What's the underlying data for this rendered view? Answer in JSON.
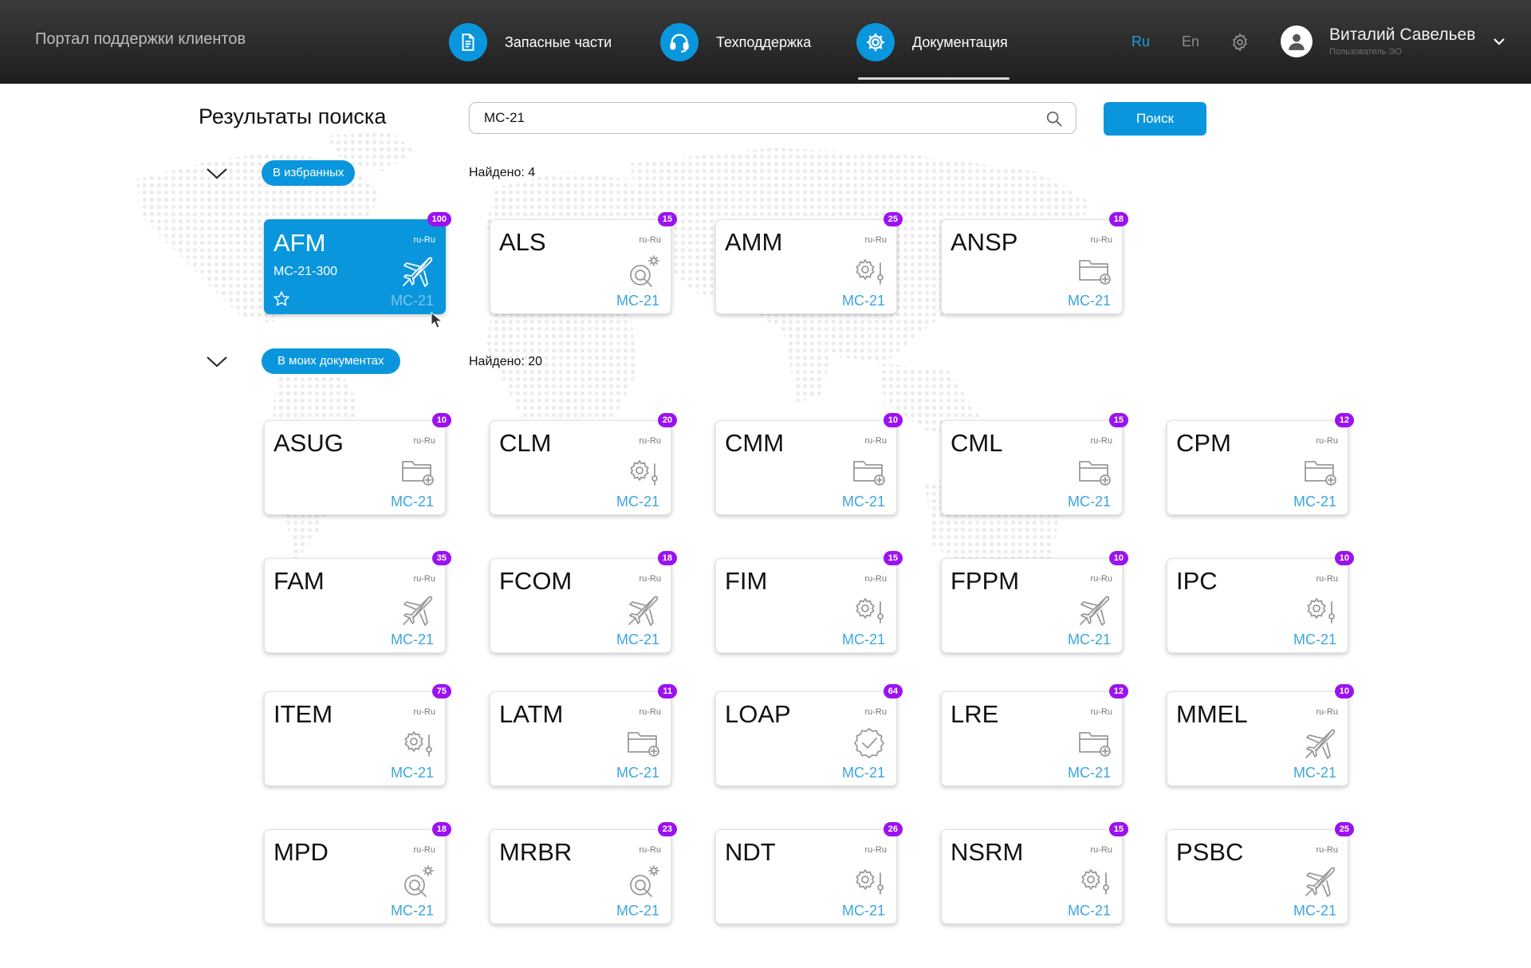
{
  "header": {
    "portal_title": "Портал поддержки клиентов",
    "nav": [
      {
        "label": "Запасные части",
        "icon": "document-icon"
      },
      {
        "label": "Техподдержка",
        "icon": "headset-icon"
      },
      {
        "label": "Документация",
        "icon": "gear-icon",
        "active": true
      }
    ],
    "languages": [
      "Ru",
      "En"
    ],
    "active_language": "Ru",
    "user": {
      "name": "Виталий Савельев",
      "role": "Пользователь ЭО"
    }
  },
  "search": {
    "title": "Результаты поиска",
    "query": "MC-21",
    "button_label": "Поиск"
  },
  "colors": {
    "accent": "#0a96dc",
    "badge": "#9b12f0",
    "model_text": "#3aa6e0"
  },
  "sections": [
    {
      "pill": "В избранных",
      "found": "Найдено: 4",
      "cards": [
        {
          "code": "AFM",
          "subtitle": "MC-21-300",
          "lang": "ru-Ru",
          "model": "MC-21",
          "count": "100",
          "icon": "airplane-icon",
          "featured": true
        },
        {
          "code": "ALS",
          "lang": "ru-Ru",
          "model": "MC-21",
          "count": "15",
          "icon": "wrench-gear-icon"
        },
        {
          "code": "AMM",
          "lang": "ru-Ru",
          "model": "MC-21",
          "count": "25",
          "icon": "gear-slider-icon"
        },
        {
          "code": "ANSP",
          "lang": "ru-Ru",
          "model": "MC-21",
          "count": "18",
          "icon": "folder-plus-icon"
        }
      ]
    },
    {
      "pill": "В моих документах",
      "found": "Найдено: 20",
      "cards": [
        {
          "code": "ASUG",
          "lang": "ru-Ru",
          "model": "MC-21",
          "count": "10",
          "icon": "folder-plus-icon"
        },
        {
          "code": "CLM",
          "lang": "ru-Ru",
          "model": "MC-21",
          "count": "20",
          "icon": "gear-slider-icon"
        },
        {
          "code": "CMM",
          "lang": "ru-Ru",
          "model": "MC-21",
          "count": "10",
          "icon": "folder-plus-icon"
        },
        {
          "code": "CML",
          "lang": "ru-Ru",
          "model": "MC-21",
          "count": "15",
          "icon": "folder-plus-icon"
        },
        {
          "code": "CPM",
          "lang": "ru-Ru",
          "model": "MC-21",
          "count": "12",
          "icon": "folder-plus-icon"
        },
        {
          "code": "FAM",
          "lang": "ru-Ru",
          "model": "MC-21",
          "count": "35",
          "icon": "airplane-icon"
        },
        {
          "code": "FCOM",
          "lang": "ru-Ru",
          "model": "MC-21",
          "count": "18",
          "icon": "airplane-icon"
        },
        {
          "code": "FIM",
          "lang": "ru-Ru",
          "model": "MC-21",
          "count": "15",
          "icon": "gear-slider-icon"
        },
        {
          "code": "FPPM",
          "lang": "ru-Ru",
          "model": "MC-21",
          "count": "10",
          "icon": "airplane-icon"
        },
        {
          "code": "IPC",
          "lang": "ru-Ru",
          "model": "MC-21",
          "count": "10",
          "icon": "gear-slider-icon"
        },
        {
          "code": "ITEM",
          "lang": "ru-Ru",
          "model": "MC-21",
          "count": "75",
          "icon": "gear-slider-icon"
        },
        {
          "code": "LATM",
          "lang": "ru-Ru",
          "model": "MC-21",
          "count": "11",
          "icon": "folder-plus-icon"
        },
        {
          "code": "LOAP",
          "lang": "ru-Ru",
          "model": "MC-21",
          "count": "64",
          "icon": "check-badge-icon"
        },
        {
          "code": "LRE",
          "lang": "ru-Ru",
          "model": "MC-21",
          "count": "12",
          "icon": "folder-plus-icon"
        },
        {
          "code": "MMEL",
          "lang": "ru-Ru",
          "model": "MC-21",
          "count": "10",
          "icon": "airplane-icon"
        },
        {
          "code": "MPD",
          "lang": "ru-Ru",
          "model": "MC-21",
          "count": "18",
          "icon": "wrench-gear-icon"
        },
        {
          "code": "MRBR",
          "lang": "ru-Ru",
          "model": "MC-21",
          "count": "23",
          "icon": "wrench-gear-icon"
        },
        {
          "code": "NDT",
          "lang": "ru-Ru",
          "model": "MC-21",
          "count": "26",
          "icon": "gear-slider-icon"
        },
        {
          "code": "NSRM",
          "lang": "ru-Ru",
          "model": "MC-21",
          "count": "15",
          "icon": "gear-slider-icon"
        },
        {
          "code": "PSBC",
          "lang": "ru-Ru",
          "model": "MC-21",
          "count": "25",
          "icon": "airplane-icon"
        }
      ]
    }
  ]
}
